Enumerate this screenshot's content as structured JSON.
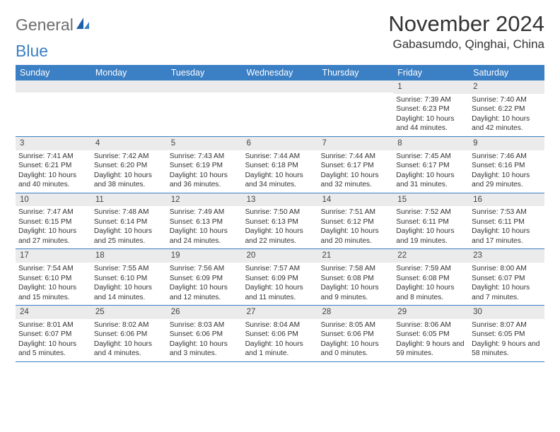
{
  "logo": {
    "text1": "General",
    "text2": "Blue"
  },
  "title": "November 2024",
  "location": "Gabasumdo, Qinghai, China",
  "day_headers": [
    "Sunday",
    "Monday",
    "Tuesday",
    "Wednesday",
    "Thursday",
    "Friday",
    "Saturday"
  ],
  "colors": {
    "header_bg": "#3b7fc4",
    "header_text": "#ffffff",
    "daynum_bg": "#ebebeb",
    "border": "#3b7fc4",
    "logo_gray": "#6d6d6d",
    "logo_blue": "#3b7fc4"
  },
  "weeks": [
    [
      {
        "n": "",
        "sr": "",
        "ss": "",
        "dl": ""
      },
      {
        "n": "",
        "sr": "",
        "ss": "",
        "dl": ""
      },
      {
        "n": "",
        "sr": "",
        "ss": "",
        "dl": ""
      },
      {
        "n": "",
        "sr": "",
        "ss": "",
        "dl": ""
      },
      {
        "n": "",
        "sr": "",
        "ss": "",
        "dl": ""
      },
      {
        "n": "1",
        "sr": "Sunrise: 7:39 AM",
        "ss": "Sunset: 6:23 PM",
        "dl": "Daylight: 10 hours and 44 minutes."
      },
      {
        "n": "2",
        "sr": "Sunrise: 7:40 AM",
        "ss": "Sunset: 6:22 PM",
        "dl": "Daylight: 10 hours and 42 minutes."
      }
    ],
    [
      {
        "n": "3",
        "sr": "Sunrise: 7:41 AM",
        "ss": "Sunset: 6:21 PM",
        "dl": "Daylight: 10 hours and 40 minutes."
      },
      {
        "n": "4",
        "sr": "Sunrise: 7:42 AM",
        "ss": "Sunset: 6:20 PM",
        "dl": "Daylight: 10 hours and 38 minutes."
      },
      {
        "n": "5",
        "sr": "Sunrise: 7:43 AM",
        "ss": "Sunset: 6:19 PM",
        "dl": "Daylight: 10 hours and 36 minutes."
      },
      {
        "n": "6",
        "sr": "Sunrise: 7:44 AM",
        "ss": "Sunset: 6:18 PM",
        "dl": "Daylight: 10 hours and 34 minutes."
      },
      {
        "n": "7",
        "sr": "Sunrise: 7:44 AM",
        "ss": "Sunset: 6:17 PM",
        "dl": "Daylight: 10 hours and 32 minutes."
      },
      {
        "n": "8",
        "sr": "Sunrise: 7:45 AM",
        "ss": "Sunset: 6:17 PM",
        "dl": "Daylight: 10 hours and 31 minutes."
      },
      {
        "n": "9",
        "sr": "Sunrise: 7:46 AM",
        "ss": "Sunset: 6:16 PM",
        "dl": "Daylight: 10 hours and 29 minutes."
      }
    ],
    [
      {
        "n": "10",
        "sr": "Sunrise: 7:47 AM",
        "ss": "Sunset: 6:15 PM",
        "dl": "Daylight: 10 hours and 27 minutes."
      },
      {
        "n": "11",
        "sr": "Sunrise: 7:48 AM",
        "ss": "Sunset: 6:14 PM",
        "dl": "Daylight: 10 hours and 25 minutes."
      },
      {
        "n": "12",
        "sr": "Sunrise: 7:49 AM",
        "ss": "Sunset: 6:13 PM",
        "dl": "Daylight: 10 hours and 24 minutes."
      },
      {
        "n": "13",
        "sr": "Sunrise: 7:50 AM",
        "ss": "Sunset: 6:13 PM",
        "dl": "Daylight: 10 hours and 22 minutes."
      },
      {
        "n": "14",
        "sr": "Sunrise: 7:51 AM",
        "ss": "Sunset: 6:12 PM",
        "dl": "Daylight: 10 hours and 20 minutes."
      },
      {
        "n": "15",
        "sr": "Sunrise: 7:52 AM",
        "ss": "Sunset: 6:11 PM",
        "dl": "Daylight: 10 hours and 19 minutes."
      },
      {
        "n": "16",
        "sr": "Sunrise: 7:53 AM",
        "ss": "Sunset: 6:11 PM",
        "dl": "Daylight: 10 hours and 17 minutes."
      }
    ],
    [
      {
        "n": "17",
        "sr": "Sunrise: 7:54 AM",
        "ss": "Sunset: 6:10 PM",
        "dl": "Daylight: 10 hours and 15 minutes."
      },
      {
        "n": "18",
        "sr": "Sunrise: 7:55 AM",
        "ss": "Sunset: 6:10 PM",
        "dl": "Daylight: 10 hours and 14 minutes."
      },
      {
        "n": "19",
        "sr": "Sunrise: 7:56 AM",
        "ss": "Sunset: 6:09 PM",
        "dl": "Daylight: 10 hours and 12 minutes."
      },
      {
        "n": "20",
        "sr": "Sunrise: 7:57 AM",
        "ss": "Sunset: 6:09 PM",
        "dl": "Daylight: 10 hours and 11 minutes."
      },
      {
        "n": "21",
        "sr": "Sunrise: 7:58 AM",
        "ss": "Sunset: 6:08 PM",
        "dl": "Daylight: 10 hours and 9 minutes."
      },
      {
        "n": "22",
        "sr": "Sunrise: 7:59 AM",
        "ss": "Sunset: 6:08 PM",
        "dl": "Daylight: 10 hours and 8 minutes."
      },
      {
        "n": "23",
        "sr": "Sunrise: 8:00 AM",
        "ss": "Sunset: 6:07 PM",
        "dl": "Daylight: 10 hours and 7 minutes."
      }
    ],
    [
      {
        "n": "24",
        "sr": "Sunrise: 8:01 AM",
        "ss": "Sunset: 6:07 PM",
        "dl": "Daylight: 10 hours and 5 minutes."
      },
      {
        "n": "25",
        "sr": "Sunrise: 8:02 AM",
        "ss": "Sunset: 6:06 PM",
        "dl": "Daylight: 10 hours and 4 minutes."
      },
      {
        "n": "26",
        "sr": "Sunrise: 8:03 AM",
        "ss": "Sunset: 6:06 PM",
        "dl": "Daylight: 10 hours and 3 minutes."
      },
      {
        "n": "27",
        "sr": "Sunrise: 8:04 AM",
        "ss": "Sunset: 6:06 PM",
        "dl": "Daylight: 10 hours and 1 minute."
      },
      {
        "n": "28",
        "sr": "Sunrise: 8:05 AM",
        "ss": "Sunset: 6:06 PM",
        "dl": "Daylight: 10 hours and 0 minutes."
      },
      {
        "n": "29",
        "sr": "Sunrise: 8:06 AM",
        "ss": "Sunset: 6:05 PM",
        "dl": "Daylight: 9 hours and 59 minutes."
      },
      {
        "n": "30",
        "sr": "Sunrise: 8:07 AM",
        "ss": "Sunset: 6:05 PM",
        "dl": "Daylight: 9 hours and 58 minutes."
      }
    ]
  ]
}
